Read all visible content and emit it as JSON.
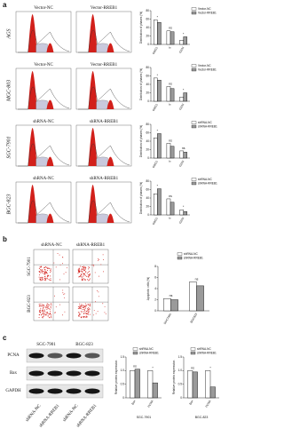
{
  "figure": {
    "panels": [
      {
        "label": "a",
        "rows": [
          {
            "name": "AGS",
            "columns": [
              "Vector-NC",
              "Vector-RREB1"
            ]
          },
          {
            "name": "MGC-803",
            "columns": [
              "Vector-NC",
              "Vector-RREB1"
            ]
          },
          {
            "name": "SGC-7901",
            "columns": [
              "shRNA-NC",
              "shRNA-RREB1"
            ]
          },
          {
            "name": "BGC-823",
            "columns": [
              "shRNA-NC",
              "shRNA-RREB1"
            ]
          }
        ]
      },
      {
        "label": "b",
        "columns": [
          "shRNA-NC",
          "shRNA-RREB1"
        ],
        "rows": [
          "SGC-7901",
          "BGC-823"
        ]
      },
      {
        "label": "c",
        "cell_lines": [
          "SGC-7901",
          "BGC-823"
        ],
        "proteins": [
          "PCNA",
          "Bax",
          "GAPDH"
        ],
        "lanes": [
          "shRNA-NC",
          "shRNA-RREB1",
          "shRNA-NC",
          "shRNA-RREB1"
        ]
      }
    ]
  },
  "chart_data": [
    {
      "type": "bar",
      "y_label": "Distribution of phases (%)",
      "categories": [
        "G0/G1",
        "S",
        "G2/M"
      ],
      "series": [
        {
          "name": "Vector-NC",
          "color": "#ffffff",
          "values": [
            58,
            32,
            10
          ]
        },
        {
          "name": "Vector-RREB1",
          "color": "#9a9a9a",
          "values": [
            52,
            30,
            18
          ]
        }
      ],
      "annotations": [
        "*",
        "ns",
        "*"
      ],
      "ylim": [
        0,
        80
      ],
      "yticks": [
        0,
        20,
        40,
        60,
        80
      ]
    },
    {
      "type": "bar",
      "y_label": "Distribution of phases (%)",
      "categories": [
        "G0/G1",
        "S",
        "G2/M"
      ],
      "series": [
        {
          "name": "Vector-NC",
          "color": "#ffffff",
          "values": [
            55,
            35,
            10
          ]
        },
        {
          "name": "Vector-RREB1",
          "color": "#9a9a9a",
          "values": [
            50,
            30,
            20
          ]
        }
      ],
      "annotations": [
        "*",
        "ns",
        "*"
      ],
      "ylim": [
        0,
        80
      ],
      "yticks": [
        0,
        20,
        40,
        60,
        80
      ]
    },
    {
      "type": "bar",
      "y_label": "Distribution of phases (%)",
      "categories": [
        "G0/G1",
        "S",
        "G2/M"
      ],
      "series": [
        {
          "name": "shRNA-NC",
          "color": "#ffffff",
          "values": [
            48,
            35,
            17
          ]
        },
        {
          "name": "shRNA-RREB1",
          "color": "#9a9a9a",
          "values": [
            58,
            28,
            14
          ]
        }
      ],
      "annotations": [
        "*",
        "ns",
        "ns"
      ],
      "ylim": [
        0,
        80
      ],
      "yticks": [
        0,
        20,
        40,
        60,
        80
      ]
    },
    {
      "type": "bar",
      "y_label": "Distribution of phases (%)",
      "categories": [
        "G0/G1",
        "S",
        "G2/M"
      ],
      "series": [
        {
          "name": "shRNA-NC",
          "color": "#ffffff",
          "values": [
            50,
            38,
            12
          ]
        },
        {
          "name": "shRNA-RREB1",
          "color": "#9a9a9a",
          "values": [
            62,
            30,
            8
          ]
        }
      ],
      "annotations": [
        "*",
        "ns",
        "*"
      ],
      "ylim": [
        0,
        80
      ],
      "yticks": [
        0,
        20,
        40,
        60,
        80
      ]
    },
    {
      "type": "bar",
      "y_label": "Apoptotic cells (%)",
      "categories": [
        "SGC7901",
        "BGC823"
      ],
      "series": [
        {
          "name": "shRNA-NC",
          "color": "#ffffff",
          "values": [
            2.2,
            5.2
          ]
        },
        {
          "name": "shRNA-RREB1",
          "color": "#9a9a9a",
          "values": [
            2.0,
            4.5
          ]
        }
      ],
      "annotations": [
        "ns",
        "ns"
      ],
      "ylim": [
        0,
        8
      ],
      "yticks": [
        0,
        2,
        4,
        6,
        8
      ]
    },
    {
      "type": "bar",
      "y_label": "Relative protein expression",
      "caption": "SGC-7901",
      "categories": [
        "Bax",
        "PCNA"
      ],
      "series": [
        {
          "name": "shRNA-NC",
          "color": "#ffffff",
          "values": [
            1.0,
            1.0
          ]
        },
        {
          "name": "shRNA-RREB1",
          "color": "#9a9a9a",
          "values": [
            1.05,
            0.55
          ]
        }
      ],
      "annotations": [
        "ns",
        "*"
      ],
      "ylim": [
        0,
        1.5
      ],
      "yticks": [
        0,
        0.5,
        {
          "value": 1.0,
          "label": "1.0"
        },
        1.5
      ]
    },
    {
      "type": "bar",
      "y_label": "Relative protein expression",
      "caption": "BGC-823",
      "categories": [
        "Bax",
        "PCNA"
      ],
      "series": [
        {
          "name": "shRNA-NC",
          "color": "#ffffff",
          "values": [
            1.0,
            1.0
          ]
        },
        {
          "name": "shRNA-RREB1",
          "color": "#9a9a9a",
          "values": [
            0.95,
            0.4
          ]
        }
      ],
      "annotations": [
        "ns",
        "*"
      ],
      "ylim": [
        0,
        1.5
      ],
      "yticks": [
        0,
        0.5,
        {
          "value": 1.0,
          "label": "1.0"
        },
        1.5
      ]
    }
  ]
}
